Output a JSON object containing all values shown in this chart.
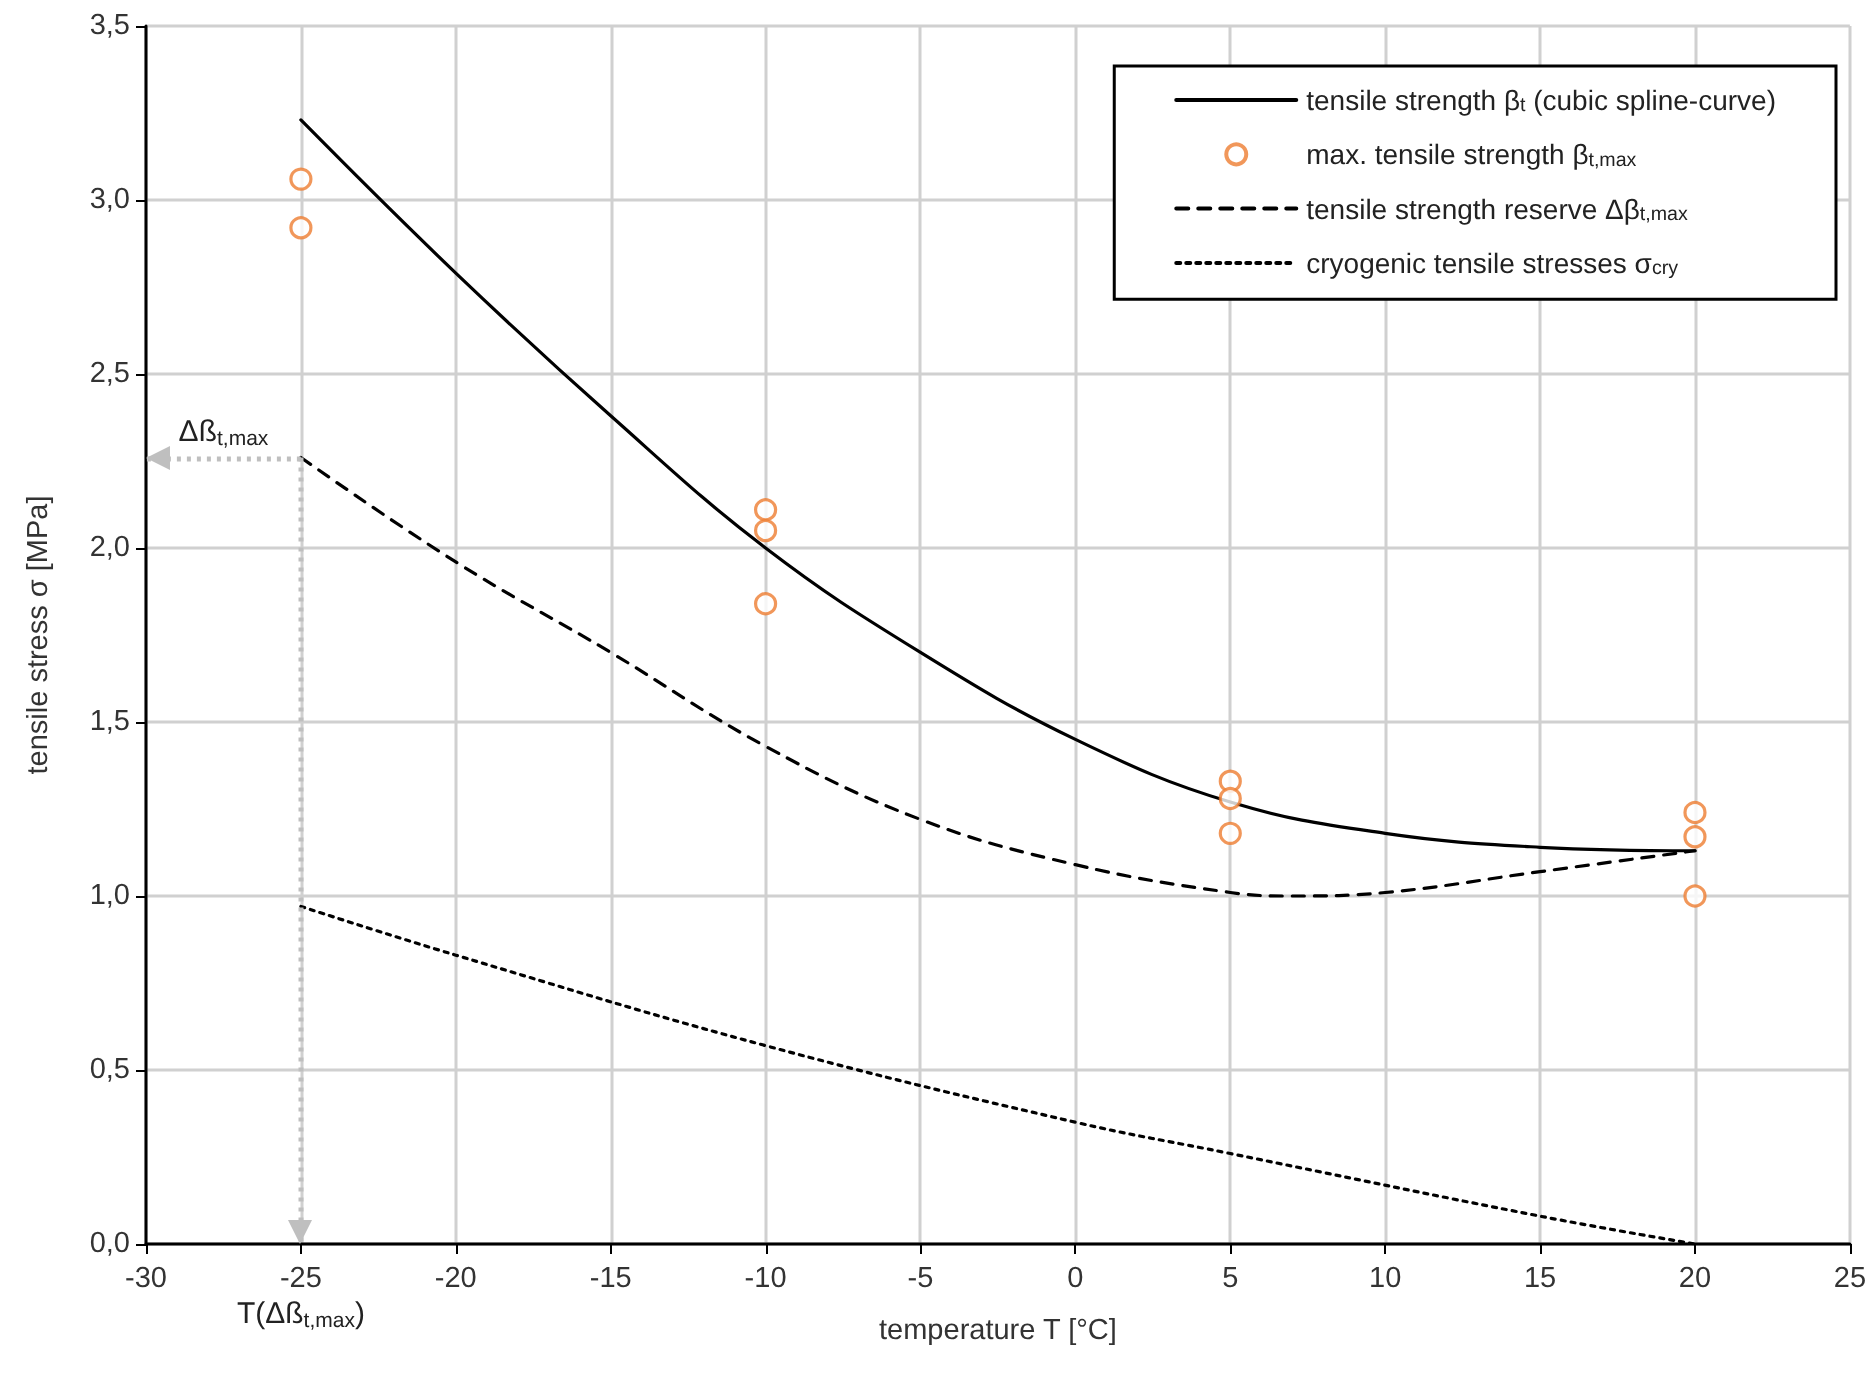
{
  "chart_data": {
    "type": "line",
    "xlabel": "temperature T [°C]",
    "ylabel": "tensile stress σ [MPa]",
    "xlim": [
      -30,
      25
    ],
    "xticks": [
      -30,
      -25,
      -20,
      -15,
      -10,
      -5,
      0,
      5,
      10,
      15,
      20,
      25
    ],
    "ylim": [
      0,
      3.5
    ],
    "yticks": [
      {
        "value": 0,
        "label": "0,0"
      },
      {
        "value": 0.5,
        "label": "0,5"
      },
      {
        "value": 1,
        "label": "1,0"
      },
      {
        "value": 1.5,
        "label": "1,5"
      },
      {
        "value": 2,
        "label": "2,0"
      },
      {
        "value": 2.5,
        "label": "2,5"
      },
      {
        "value": 3,
        "label": "3,0"
      },
      {
        "value": 3.5,
        "label": "3,5"
      }
    ],
    "grid": true,
    "legend": "top right",
    "series": [
      {
        "name": "tensile strength β$_{t}$ (cubic spline-curve)",
        "type": "line",
        "color": "#000000",
        "line_style": "solid",
        "marker": "none",
        "x": [
          -25,
          -20,
          -15,
          -10,
          -5,
          0,
          5,
          10,
          15,
          20
        ],
        "values": [
          3.23,
          2.79,
          2.38,
          2.0,
          1.7,
          1.45,
          1.27,
          1.18,
          1.14,
          1.13
        ]
      },
      {
        "name": "max. tensile strength β$_{t,max}$",
        "type": "scatter",
        "color": "#ed7d31",
        "marker": "circle",
        "x": [
          -25,
          -25,
          -10,
          -10,
          -10,
          5,
          5,
          5,
          20,
          20,
          20
        ],
        "values": [
          3.06,
          2.92,
          2.11,
          2.05,
          1.84,
          1.33,
          1.28,
          1.18,
          1.24,
          1.17,
          1.0
        ]
      },
      {
        "name": "tensile strength reserve Δβ$_{t,max}$",
        "type": "line",
        "color": "#000000",
        "line_style": "dashed",
        "marker": "none",
        "x": [
          -25,
          -20,
          -15,
          -10,
          -5,
          0,
          5,
          7,
          10,
          15,
          20
        ],
        "values": [
          2.26,
          1.96,
          1.7,
          1.43,
          1.22,
          1.09,
          1.01,
          1.0,
          1.01,
          1.07,
          1.13
        ]
      },
      {
        "name": "cryogenic tensile stresses σ$_{cry}$",
        "type": "line",
        "color": "#000000",
        "line_style": "dotted",
        "marker": "none",
        "x": [
          -25,
          -20,
          -10,
          0,
          5,
          15,
          20
        ],
        "values": [
          0.97,
          0.83,
          0.57,
          0.35,
          0.26,
          0.08,
          0.0
        ]
      }
    ],
    "ref_lines": [
      {
        "axis": "y",
        "value": 2.26,
        "label": "Δß$_{t,max}$",
        "color": "#bfbfbf",
        "line_style": "dotted"
      },
      {
        "axis": "x",
        "value": -25,
        "label": "T(Δß$_{t,max}$)",
        "color": "#bfbfbf",
        "line_style": "dotted"
      }
    ]
  }
}
